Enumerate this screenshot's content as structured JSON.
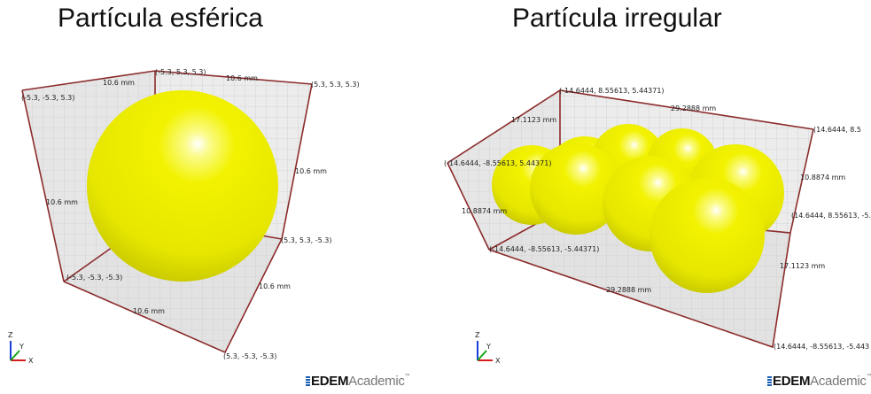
{
  "titles": {
    "left": "Partícula esférica",
    "right": "Partícula irregular"
  },
  "left_view": {
    "corners": {
      "top_back": "(-5.3, 5.3, 5.3)",
      "top_left": "(-5.3, -5.3, 5.3)",
      "top_right": "(5.3, 5.3, 5.3)",
      "mid_right": "(5.3, 5.3, -5.3)",
      "bottom_left": "(-5.3, -5.3, -5.3)",
      "bottom_right": "(5.3, -5.3, -5.3)"
    },
    "dims": {
      "top_a": "10.6 mm",
      "top_b": "10.6 mm",
      "left": "10.6 mm",
      "right": "10.6 mm",
      "bottom_right": "10.6 mm",
      "bottom": "10.6 mm"
    }
  },
  "right_view": {
    "corners": {
      "top_back": "(-14.6444, 8.55613, 5.44371)",
      "top_left": "(-14.6444, -8.55613, 5.44371)",
      "top_right": "(14.6444, 8.5",
      "mid_right": "(14.6444, 8.55613, -5.",
      "bottom_left": "(-14.6444, -8.55613, -5.44371)",
      "bottom_right": "(14.6444, -8.55613, -5.443"
    },
    "dims": {
      "top_a": "17.1123 mm",
      "top_b": "29.2888 mm",
      "left": "10.8874 mm",
      "right": "10.8874 mm",
      "right_lower": "17.1123 mm",
      "bottom": "29.2888 mm"
    }
  },
  "axes": {
    "z": "Z",
    "y": "Y",
    "x": "X"
  },
  "brand": {
    "bold": "EDEM",
    "light": "Academic",
    "tm": "™"
  },
  "colors": {
    "sphere": "#f2f200",
    "frame": "#8b2b2b",
    "grid": "#d6d6d6",
    "panel": "#e4e4e4"
  }
}
